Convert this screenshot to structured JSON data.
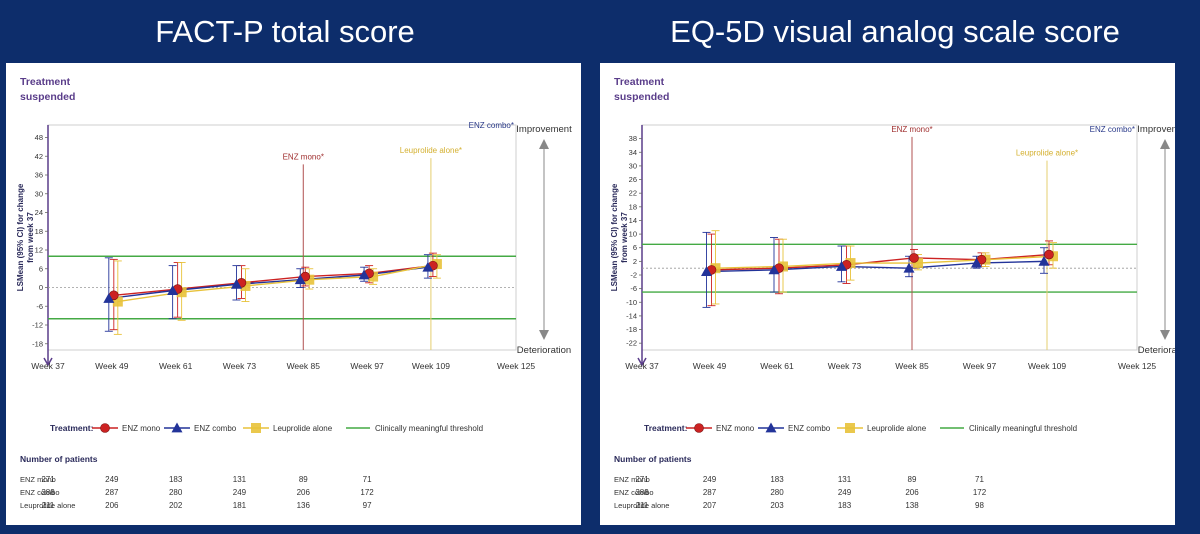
{
  "panels": [
    {
      "title": "FACT-P total score",
      "treatment_note": [
        "Treatment",
        "suspended"
      ],
      "chart_data": {
        "type": "line",
        "ylabel": [
          "LSMean (95% CI) for change",
          "from week 37"
        ],
        "xticks": [
          "Week 37",
          "Week 49",
          "Week 61",
          "Week 73",
          "Week 85",
          "Week 97",
          "Week 109",
          "Week 125"
        ],
        "x": [
          37,
          49,
          61,
          73,
          85,
          97,
          109,
          125
        ],
        "xlim": [
          37,
          125
        ],
        "ylim": [
          -20,
          52
        ],
        "yticks": [
          -18,
          -12,
          -6,
          0,
          6,
          12,
          18,
          24,
          30,
          36,
          42,
          48
        ],
        "threshold_values": [
          10,
          -10
        ],
        "series": [
          {
            "name": "ENZ mono",
            "color": "#cc2222",
            "marker": "circle",
            "x": [
              49,
              61,
              73,
              85,
              97,
              109
            ],
            "values": [
              -2.5,
              -0.5,
              1.5,
              3.5,
              4.5,
              7.0
            ],
            "lower": [
              -13.5,
              -9.5,
              -3.5,
              0.5,
              1.5,
              3.5
            ],
            "upper": [
              9.0,
              8.0,
              7.0,
              6.5,
              7.0,
              11.0
            ]
          },
          {
            "name": "ENZ combo",
            "color": "#223399",
            "marker": "triangle",
            "x": [
              49,
              61,
              73,
              85,
              97,
              109
            ],
            "values": [
              -3.5,
              -1.0,
              1.0,
              2.5,
              4.0,
              6.5
            ],
            "lower": [
              -14.0,
              -10.0,
              -4.0,
              0.0,
              2.0,
              3.0
            ],
            "upper": [
              9.5,
              7.0,
              7.0,
              6.0,
              6.5,
              10.5
            ]
          },
          {
            "name": "Leuprolide alone",
            "color": "#e8c23a",
            "marker": "square",
            "x": [
              49,
              61,
              73,
              85,
              97,
              109
            ],
            "values": [
              -4.5,
              -1.5,
              0.5,
              2.5,
              3.5,
              7.5
            ],
            "lower": [
              -15.0,
              -10.5,
              -4.5,
              -0.5,
              1.0,
              3.0
            ],
            "upper": [
              8.5,
              8.0,
              6.0,
              6.0,
              6.0,
              10.5
            ]
          }
        ],
        "threshold": {
          "name": "Clinically meaningful threshold",
          "color": "#44aa44"
        },
        "vlines": [
          {
            "label": "ENZ mono",
            "x": 85,
            "color": "#a03030",
            "stroke": "#b05050",
            "label_at": 41
          },
          {
            "label": "ENZ combo",
            "x": 125,
            "color": "#2a3a8a",
            "stroke": "#2a3a8a",
            "label_at": 51
          },
          {
            "label": "Leuprolide alone",
            "x": 109,
            "color": "#d4b030",
            "stroke": "#e5cf70",
            "label_at": 43
          }
        ],
        "direction": {
          "up": "Improvement",
          "down": "Deterioration"
        }
      },
      "legend_title": "Treatment:",
      "patients": {
        "title": "Number of patients",
        "rows": [
          {
            "label": "ENZ mono",
            "values": [
              "271",
              "249",
              "183",
              "131",
              "89",
              "71"
            ]
          },
          {
            "label": "ENZ combo",
            "values": [
              "288",
              "287",
              "280",
              "249",
              "206",
              "172"
            ]
          },
          {
            "label": "Leuprolide alone",
            "values": [
              "211",
              "206",
              "202",
              "181",
              "136",
              "97"
            ]
          }
        ]
      }
    },
    {
      "title": "EQ-5D visual analog scale score",
      "treatment_note": [
        "Treatment",
        "suspended"
      ],
      "chart_data": {
        "type": "line",
        "ylabel": [
          "LSMean (95% CI) for change",
          "from week 37"
        ],
        "xticks": [
          "Week 37",
          "Week 49",
          "Week 61",
          "Week 73",
          "Week 85",
          "Week 97",
          "Week 109",
          "Week 125"
        ],
        "x": [
          37,
          49,
          61,
          73,
          85,
          97,
          109,
          125
        ],
        "xlim": [
          37,
          125
        ],
        "ylim": [
          -24,
          42
        ],
        "yticks": [
          -22,
          -18,
          -14,
          -10,
          -6,
          -2,
          2,
          6,
          10,
          14,
          18,
          22,
          26,
          30,
          34,
          38
        ],
        "threshold_values": [
          7,
          -7
        ],
        "series": [
          {
            "name": "ENZ mono",
            "color": "#cc2222",
            "marker": "circle",
            "x": [
              49,
              61,
              73,
              85,
              97,
              109
            ],
            "values": [
              -0.5,
              0.0,
              1.0,
              3.0,
              2.5,
              4.0
            ],
            "lower": [
              -11.0,
              -7.5,
              -4.5,
              0.0,
              0.5,
              1.0
            ],
            "upper": [
              10.0,
              8.5,
              6.5,
              5.5,
              4.5,
              8.0
            ]
          },
          {
            "name": "ENZ combo",
            "color": "#223399",
            "marker": "triangle",
            "x": [
              49,
              61,
              73,
              85,
              97,
              109
            ],
            "values": [
              -1.0,
              -0.5,
              0.5,
              0.0,
              1.5,
              2.0
            ],
            "lower": [
              -11.5,
              -7.0,
              -4.0,
              -2.5,
              0.0,
              -1.5
            ],
            "upper": [
              10.5,
              9.0,
              6.5,
              3.5,
              3.5,
              6.0
            ]
          },
          {
            "name": "Leuprolide alone",
            "color": "#e8c23a",
            "marker": "square",
            "x": [
              49,
              61,
              73,
              85,
              97,
              109
            ],
            "values": [
              0.0,
              0.5,
              1.5,
              1.5,
              2.5,
              3.5
            ],
            "lower": [
              -10.5,
              -7.0,
              -3.5,
              -0.5,
              0.5,
              0.0
            ],
            "upper": [
              11.0,
              8.5,
              6.5,
              4.0,
              4.5,
              7.5
            ]
          }
        ],
        "threshold": {
          "name": "Clinically meaningful threshold",
          "color": "#44aa44"
        },
        "vlines": [
          {
            "label": "ENZ mono",
            "x": 85,
            "color": "#a03030",
            "stroke": "#b05050",
            "label_at": 40
          },
          {
            "label": "ENZ combo",
            "x": 125,
            "color": "#2a3a8a",
            "stroke": "#2a3a8a",
            "label_at": 40
          },
          {
            "label": "Leuprolide alone",
            "x": 109,
            "color": "#d4b030",
            "stroke": "#e5cf70",
            "label_at": 33
          }
        ],
        "direction": {
          "up": "Improvement",
          "down": "Deterioration"
        }
      },
      "legend_title": "Treatment:",
      "patients": {
        "title": "Number of patients",
        "rows": [
          {
            "label": "ENZ mono",
            "values": [
              "271",
              "249",
              "183",
              "131",
              "89",
              "71"
            ]
          },
          {
            "label": "ENZ combo",
            "values": [
              "288",
              "287",
              "280",
              "249",
              "206",
              "172"
            ]
          },
          {
            "label": "Leuprolide alone",
            "values": [
              "211",
              "207",
              "203",
              "183",
              "138",
              "98"
            ]
          }
        ]
      }
    }
  ]
}
